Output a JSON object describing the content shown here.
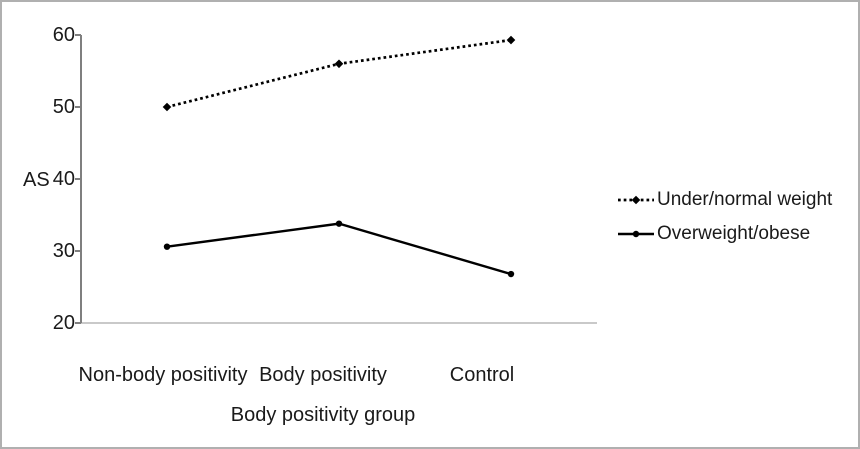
{
  "colors": {
    "series_line": "#000000",
    "y_axis": "#7f7f7f",
    "x_baseline": "#c9c9c9",
    "text": "#1a1a1a",
    "frame_border": "#b0b0b0",
    "background": "#ffffff"
  },
  "chart_data": {
    "type": "line",
    "title": "",
    "xlabel": "Body positivity group",
    "ylabel": "AS",
    "categories": [
      "Non-body positivity",
      "Body positivity",
      "Control"
    ],
    "series": [
      {
        "name": "Under/normal weight",
        "style": "dotted",
        "marker": "diamond",
        "color": "#000000",
        "values": [
          50.0,
          56.0,
          59.3
        ]
      },
      {
        "name": "Overweight/obese",
        "style": "solid",
        "marker": "circle",
        "color": "#000000",
        "values": [
          30.6,
          33.8,
          26.8
        ]
      }
    ],
    "ylim": [
      20,
      60
    ],
    "yticks": [
      60,
      50,
      40,
      30,
      20
    ],
    "grid": false,
    "legend_position": "right"
  }
}
